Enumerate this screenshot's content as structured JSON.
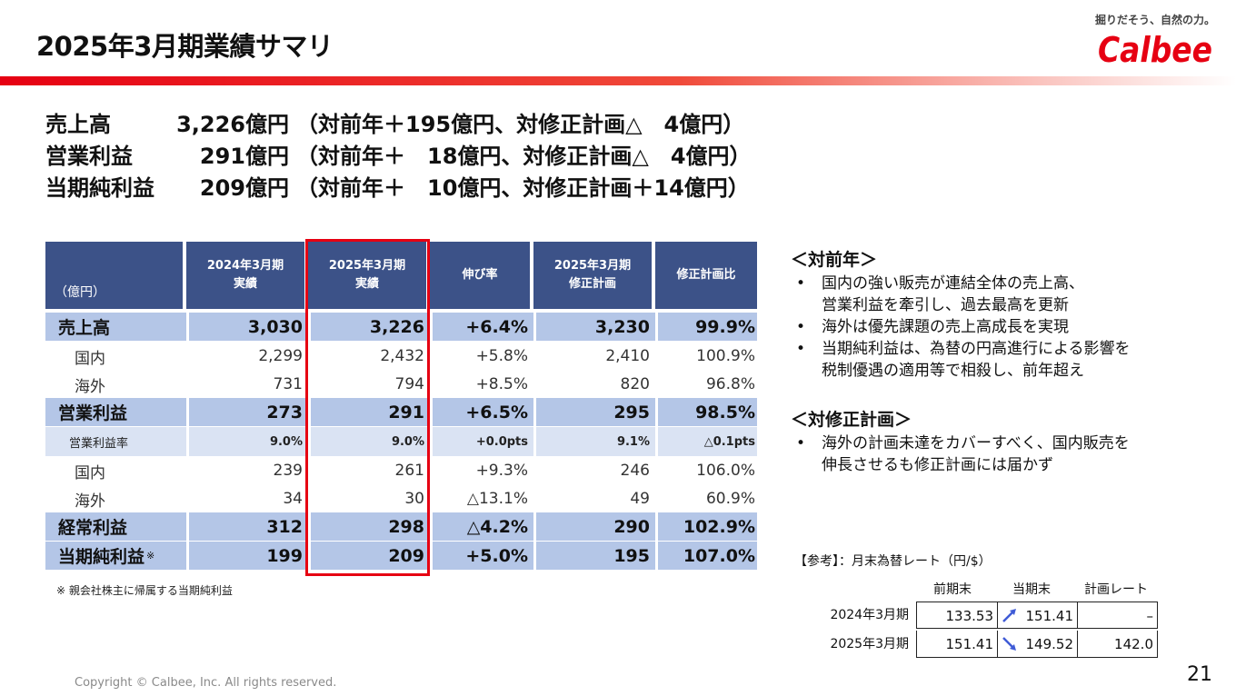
{
  "title": "2025年3月期業績サマリ",
  "brand": {
    "tagline": "掘りだそう、自然の力。",
    "logo_text": "Calbee",
    "logo_color": "#e60012"
  },
  "summary": [
    {
      "label": "売上高",
      "value": "3,226億円",
      "detail": "（対前年＋195億円、対修正計画△　4億円）"
    },
    {
      "label": "営業利益",
      "value": "291億円",
      "detail": "（対前年＋　18億円、対修正計画△　4億円）"
    },
    {
      "label": "当期純利益",
      "value": "209億円",
      "detail": "（対前年＋　10億円、対修正計画＋14億円）"
    }
  ],
  "table": {
    "unit": "（億円）",
    "headers": [
      "2024年3月期\n実績",
      "2025年3月期\n実績",
      "伸び率",
      "2025年3月期\n修正計画",
      "修正計画比"
    ],
    "rows": [
      {
        "label": "売上高",
        "values": [
          "3,030",
          "3,226",
          "+6.4%",
          "3,230",
          "99.9%"
        ],
        "style": "bold"
      },
      {
        "label": "国内",
        "values": [
          "2,299",
          "2,432",
          "+5.8%",
          "2,410",
          "100.9%"
        ],
        "style": "plain"
      },
      {
        "label": "海外",
        "values": [
          "731",
          "794",
          "+8.5%",
          "820",
          "96.8%"
        ],
        "style": "plain"
      },
      {
        "label": "営業利益",
        "values": [
          "273",
          "291",
          "+6.5%",
          "295",
          "98.5%"
        ],
        "style": "bold"
      },
      {
        "label": "営業利益率",
        "values": [
          "9.0%",
          "9.0%",
          "+0.0pts",
          "9.1%",
          "△0.1pts"
        ],
        "style": "light"
      },
      {
        "label": "国内",
        "values": [
          "239",
          "261",
          "+9.3%",
          "246",
          "106.0%"
        ],
        "style": "plain"
      },
      {
        "label": "海外",
        "values": [
          "34",
          "30",
          "△13.1%",
          "49",
          "60.9%"
        ],
        "style": "plain"
      },
      {
        "label": "経常利益",
        "values": [
          "312",
          "298",
          "△4.2%",
          "290",
          "102.9%"
        ],
        "style": "bold"
      },
      {
        "label": "当期純利益",
        "note": "※",
        "values": [
          "199",
          "209",
          "+5.0%",
          "195",
          "107.0%"
        ],
        "style": "bold"
      }
    ],
    "footnote": "※ 親会社株主に帰属する当期純利益"
  },
  "commentary": {
    "yoy_head": "＜対前年＞",
    "yoy_bullets": [
      [
        "国内の強い販売が連結全体の売上高、",
        "営業利益を牽引し、過去最高を更新"
      ],
      [
        "海外は優先課題の売上高成長を実現"
      ],
      [
        "当期純利益は、為替の円高進行による影響を",
        "税制優遇の適用等で相殺し、前年超え"
      ]
    ],
    "plan_head": "＜対修正計画＞",
    "plan_bullets": [
      [
        "海外の計画未達をカバーすべく、国内販売を",
        "伸長させるも修正計画には届かず"
      ]
    ],
    "bullet_char": "•"
  },
  "fx": {
    "title": "【参考】：月末為替レート（円/$）",
    "headers": [
      "前期末",
      "当期末",
      "計画レート"
    ],
    "rows": [
      {
        "label": "2024年3月期",
        "prev": "133.53",
        "curr": "151.41",
        "plan": "–",
        "trend": "up"
      },
      {
        "label": "2025年3月期",
        "prev": "151.41",
        "curr": "149.52",
        "plan": "142.0",
        "trend": "down"
      }
    ],
    "arrow_color": "#3f5bd6"
  },
  "copyright": "Copyright © Calbee, Inc. All rights reserved.",
  "page_number": "21"
}
